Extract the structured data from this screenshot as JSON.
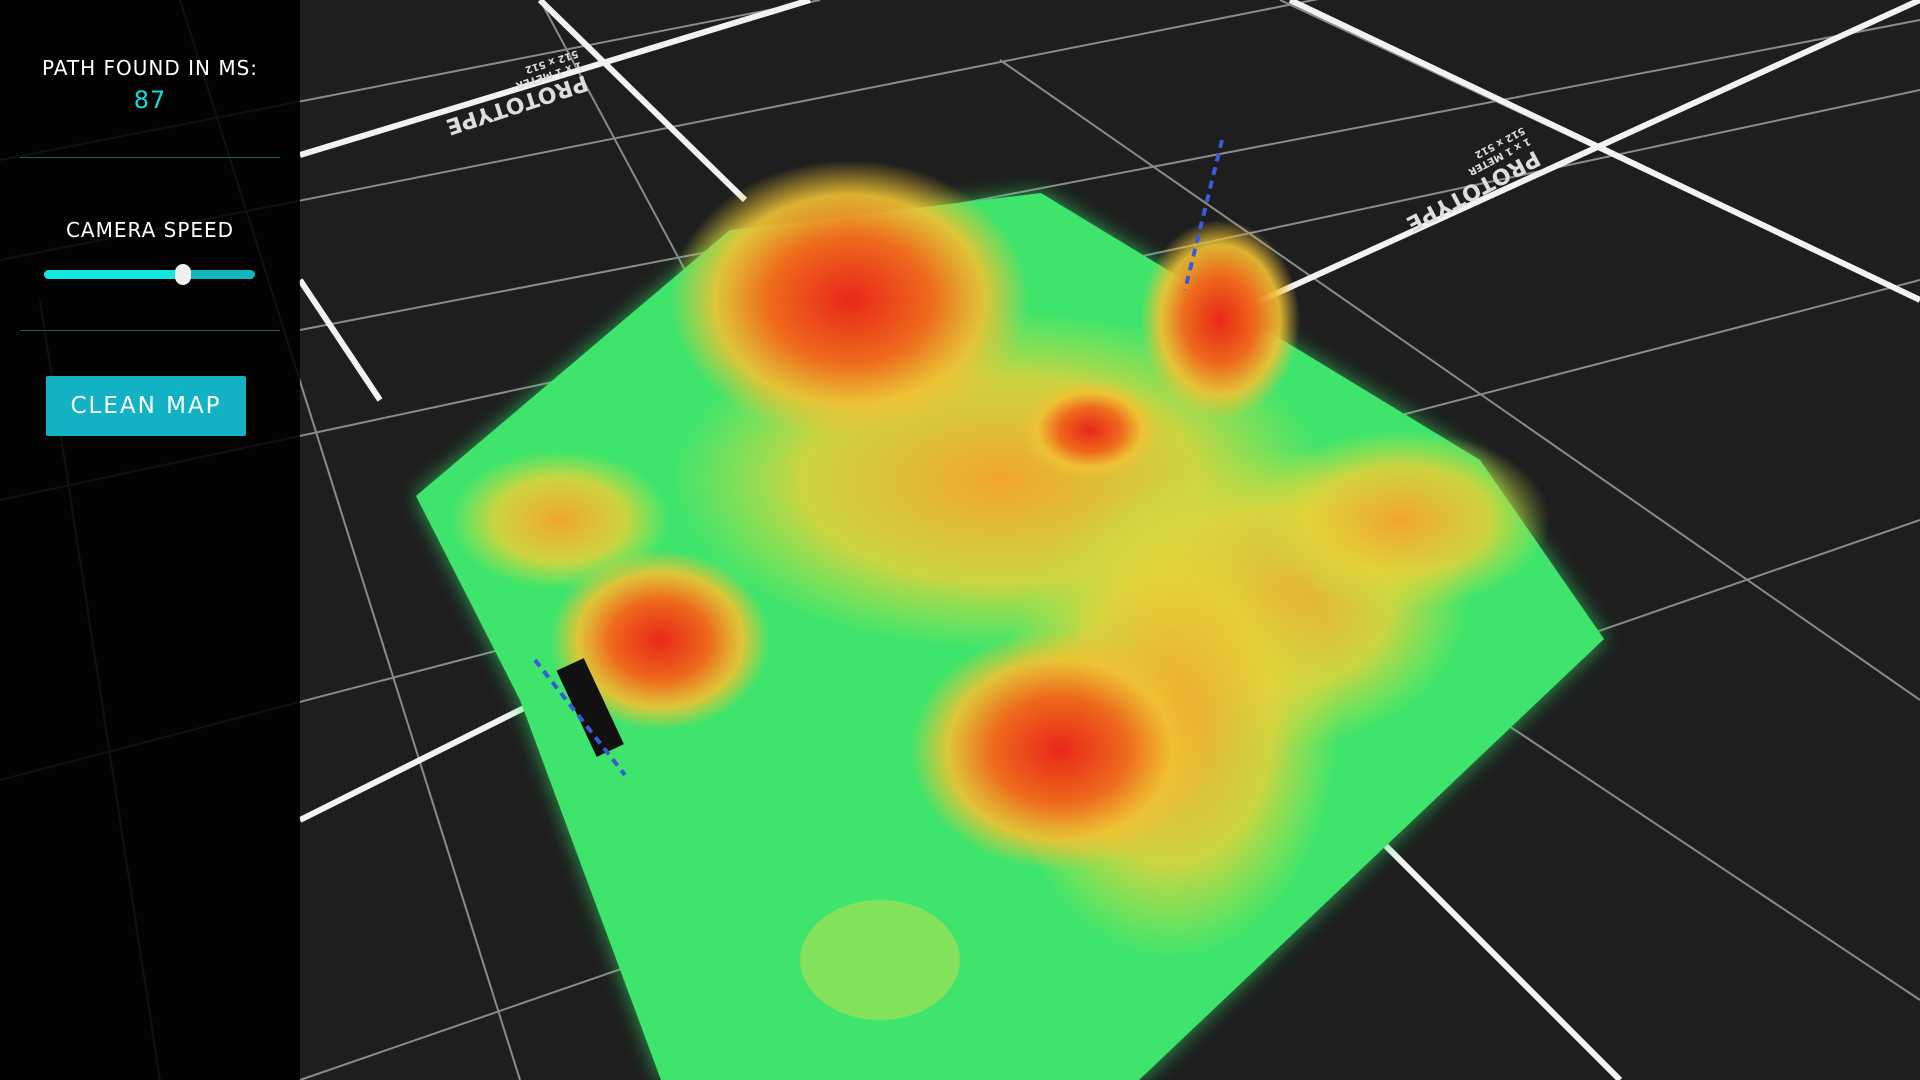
{
  "hud": {
    "path_label": "PATH FOUND IN MS:",
    "path_ms": "87",
    "camera_speed_label": "CAMERA SPEED",
    "camera_speed_value": 0.66,
    "clean_map_label": "CLEAN MAP"
  },
  "floor": {
    "decal_title": "PROTOTYPE",
    "decal_sub1": "1 x 1 METER",
    "decal_sub2": "512 x 512"
  },
  "colors": {
    "accent": "#14e6e0",
    "button": "#12b2c4",
    "terrain_low": "#33e36a",
    "terrain_mid": "#f0c234",
    "terrain_high": "#e8271a"
  }
}
